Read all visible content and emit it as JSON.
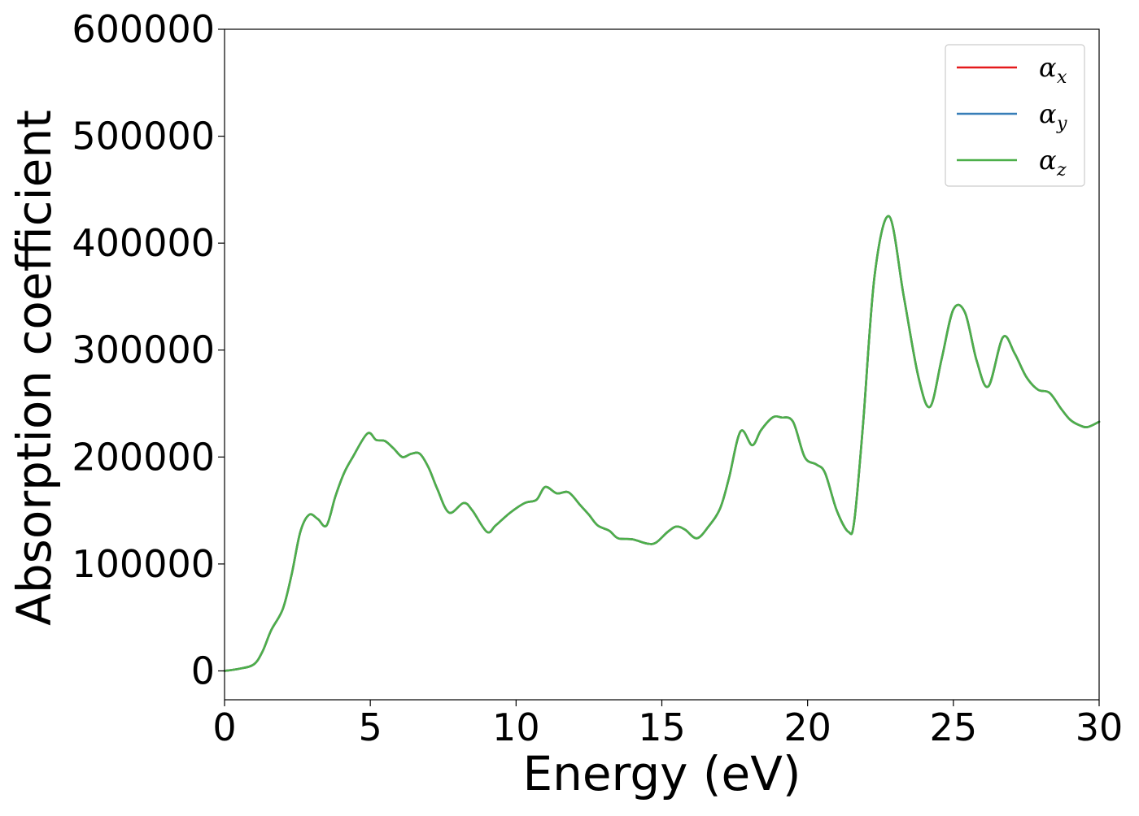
{
  "chart_data": {
    "type": "line",
    "title": "",
    "xlabel": "Energy (eV)",
    "ylabel": "Absorption coefficient",
    "xlim": [
      0,
      30
    ],
    "ylim": [
      -27000,
      600000
    ],
    "xticks": [
      0,
      5,
      10,
      15,
      20,
      25,
      30
    ],
    "xtick_labels": [
      "0",
      "5",
      "10",
      "15",
      "20",
      "25",
      "30"
    ],
    "yticks": [
      0,
      100000,
      200000,
      300000,
      400000,
      500000,
      600000
    ],
    "ytick_labels": [
      "0",
      "100000",
      "200000",
      "300000",
      "400000",
      "500000",
      "600000"
    ],
    "grid": false,
    "legend_position": "top-right",
    "series": [
      {
        "name": "αx",
        "symbol": "α",
        "subscript": "x",
        "color": "#e41a1c",
        "x": [
          0,
          0.5,
          1.0,
          1.3,
          1.6,
          2.0,
          2.3,
          2.6,
          2.9,
          3.2,
          3.5,
          3.8,
          4.1,
          4.4,
          4.9,
          5.2,
          5.5,
          5.8,
          6.1,
          6.4,
          6.7,
          7.0,
          7.3,
          7.7,
          8.2,
          8.5,
          9.0,
          9.3,
          9.8,
          10.3,
          10.7,
          11.0,
          11.4,
          11.8,
          12.2,
          12.5,
          12.8,
          13.2,
          13.5,
          14.0,
          14.5,
          14.8,
          15.2,
          15.5,
          15.8,
          16.2,
          16.6,
          17.0,
          17.3,
          17.7,
          18.1,
          18.4,
          18.8,
          19.1,
          19.5,
          19.9,
          20.3,
          20.6,
          21.0,
          21.4,
          21.6,
          21.9,
          22.3,
          22.8,
          23.3,
          23.8,
          24.2,
          24.6,
          25.0,
          25.4,
          25.8,
          26.2,
          26.7,
          27.1,
          27.5,
          27.9,
          28.3,
          28.7,
          29.0,
          29.3,
          29.6,
          30.0
        ],
        "y": [
          0,
          2000,
          6000,
          18000,
          38000,
          58000,
          90000,
          130000,
          146000,
          142000,
          136000,
          163000,
          185000,
          200000,
          222000,
          216000,
          215000,
          208000,
          200000,
          203000,
          203000,
          190000,
          170000,
          148000,
          157000,
          150000,
          130000,
          136000,
          148000,
          157000,
          160000,
          172000,
          166000,
          167000,
          155000,
          146000,
          136000,
          131000,
          124000,
          123000,
          119000,
          120000,
          130000,
          135000,
          132000,
          124000,
          135000,
          152000,
          180000,
          224000,
          211000,
          225000,
          237000,
          237000,
          233000,
          200000,
          193000,
          185000,
          150000,
          130000,
          140000,
          230000,
          370000,
          425000,
          350000,
          275000,
          247000,
          292000,
          338000,
          335000,
          290000,
          266000,
          312000,
          297000,
          275000,
          263000,
          260000,
          245000,
          235000,
          230000,
          228000,
          233000
        ]
      },
      {
        "name": "αy",
        "symbol": "α",
        "subscript": "y",
        "color": "#377eb8",
        "x": [
          0,
          0.5,
          1.0,
          1.3,
          1.6,
          2.0,
          2.3,
          2.6,
          2.9,
          3.2,
          3.5,
          3.8,
          4.1,
          4.4,
          4.9,
          5.2,
          5.5,
          5.8,
          6.1,
          6.4,
          6.7,
          7.0,
          7.3,
          7.7,
          8.2,
          8.5,
          9.0,
          9.3,
          9.8,
          10.3,
          10.7,
          11.0,
          11.4,
          11.8,
          12.2,
          12.5,
          12.8,
          13.2,
          13.5,
          14.0,
          14.5,
          14.8,
          15.2,
          15.5,
          15.8,
          16.2,
          16.6,
          17.0,
          17.3,
          17.7,
          18.1,
          18.4,
          18.8,
          19.1,
          19.5,
          19.9,
          20.3,
          20.6,
          21.0,
          21.4,
          21.6,
          21.9,
          22.3,
          22.8,
          23.3,
          23.8,
          24.2,
          24.6,
          25.0,
          25.4,
          25.8,
          26.2,
          26.7,
          27.1,
          27.5,
          27.9,
          28.3,
          28.7,
          29.0,
          29.3,
          29.6,
          30.0
        ],
        "y": [
          0,
          2000,
          6000,
          18000,
          38000,
          58000,
          90000,
          130000,
          146000,
          142000,
          136000,
          163000,
          185000,
          200000,
          222000,
          216000,
          215000,
          208000,
          200000,
          203000,
          203000,
          190000,
          170000,
          148000,
          157000,
          150000,
          130000,
          136000,
          148000,
          157000,
          160000,
          172000,
          166000,
          167000,
          155000,
          146000,
          136000,
          131000,
          124000,
          123000,
          119000,
          120000,
          130000,
          135000,
          132000,
          124000,
          135000,
          152000,
          180000,
          224000,
          211000,
          225000,
          237000,
          237000,
          233000,
          200000,
          193000,
          185000,
          150000,
          130000,
          140000,
          230000,
          370000,
          425000,
          350000,
          275000,
          247000,
          292000,
          338000,
          335000,
          290000,
          266000,
          312000,
          297000,
          275000,
          263000,
          260000,
          245000,
          235000,
          230000,
          228000,
          233000
        ]
      },
      {
        "name": "αz",
        "symbol": "α",
        "subscript": "z",
        "color": "#4daf4a",
        "x": [
          0,
          0.5,
          1.0,
          1.3,
          1.6,
          2.0,
          2.3,
          2.6,
          2.9,
          3.2,
          3.5,
          3.8,
          4.1,
          4.4,
          4.9,
          5.2,
          5.5,
          5.8,
          6.1,
          6.4,
          6.7,
          7.0,
          7.3,
          7.7,
          8.2,
          8.5,
          9.0,
          9.3,
          9.8,
          10.3,
          10.7,
          11.0,
          11.4,
          11.8,
          12.2,
          12.5,
          12.8,
          13.2,
          13.5,
          14.0,
          14.5,
          14.8,
          15.2,
          15.5,
          15.8,
          16.2,
          16.6,
          17.0,
          17.3,
          17.7,
          18.1,
          18.4,
          18.8,
          19.1,
          19.5,
          19.9,
          20.3,
          20.6,
          21.0,
          21.4,
          21.6,
          21.9,
          22.3,
          22.8,
          23.3,
          23.8,
          24.2,
          24.6,
          25.0,
          25.4,
          25.8,
          26.2,
          26.7,
          27.1,
          27.5,
          27.9,
          28.3,
          28.7,
          29.0,
          29.3,
          29.6,
          30.0
        ],
        "y": [
          0,
          2000,
          6000,
          18000,
          38000,
          58000,
          90000,
          130000,
          146000,
          142000,
          136000,
          163000,
          185000,
          200000,
          222000,
          216000,
          215000,
          208000,
          200000,
          203000,
          203000,
          190000,
          170000,
          148000,
          157000,
          150000,
          130000,
          136000,
          148000,
          157000,
          160000,
          172000,
          166000,
          167000,
          155000,
          146000,
          136000,
          131000,
          124000,
          123000,
          119000,
          120000,
          130000,
          135000,
          132000,
          124000,
          135000,
          152000,
          180000,
          224000,
          211000,
          225000,
          237000,
          237000,
          233000,
          200000,
          193000,
          185000,
          150000,
          130000,
          140000,
          230000,
          370000,
          425000,
          350000,
          275000,
          247000,
          292000,
          338000,
          335000,
          290000,
          266000,
          312000,
          297000,
          275000,
          263000,
          260000,
          245000,
          235000,
          230000,
          228000,
          233000
        ]
      }
    ]
  }
}
